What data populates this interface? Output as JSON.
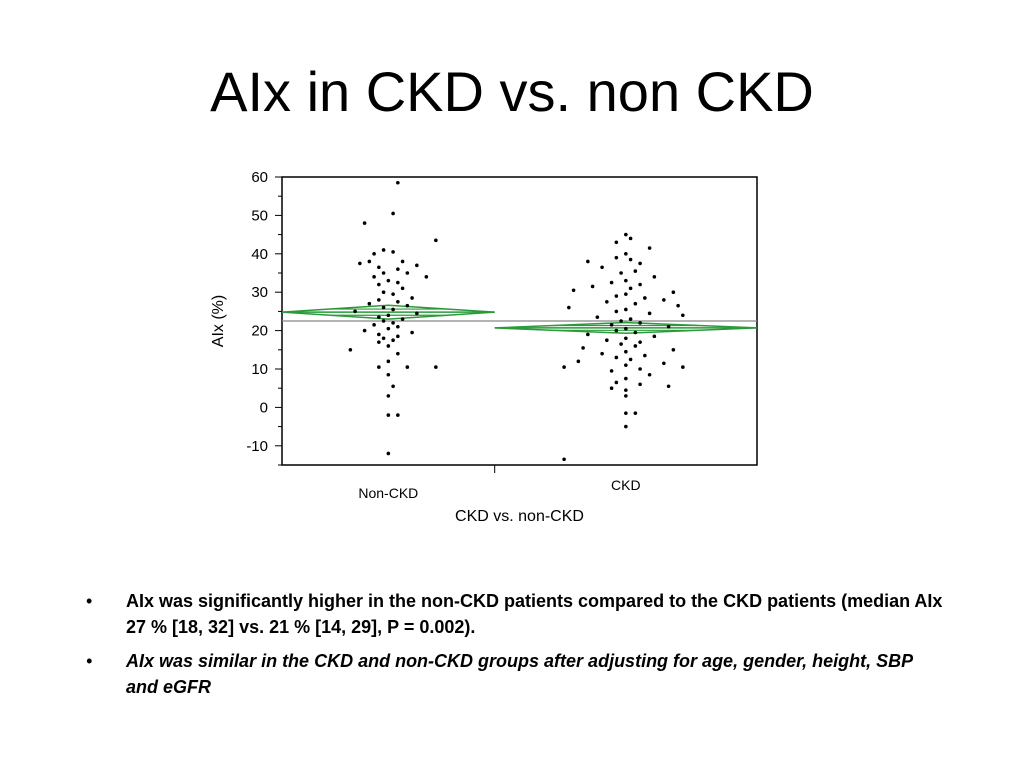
{
  "slide": {
    "title": "AIx in CKD vs. non CKD",
    "bullets": [
      "AIx was significantly higher in the non-CKD patients compared to the CKD patients (median AIx 27 % [18, 32] vs. 21 % [14, 29], P = 0.002).",
      "AIx was similar in the CKD and non-CKD groups after adjusting for age, gender, height, SBP and eGFR"
    ],
    "bullet_symbol": "•"
  },
  "chart_data": {
    "type": "scatter",
    "xlabel": "CKD vs. non-CKD",
    "ylabel": "AIx (%)",
    "categories": [
      "Non-CKD",
      "CKD"
    ],
    "ylim": [
      -15,
      60
    ],
    "yticks": [
      -10,
      0,
      10,
      20,
      30,
      40,
      50,
      60
    ],
    "grand_mean": 22.5,
    "colors": {
      "diamond": "#2a9a3a",
      "points": "#000000",
      "reference": "#888888"
    },
    "groups": [
      {
        "name": "Non-CKD",
        "mean": 24.8,
        "ci_low": 23.0,
        "ci_high": 26.6,
        "points": [
          [
            0.02,
            58.5
          ],
          [
            0.01,
            50.5
          ],
          [
            -0.05,
            48
          ],
          [
            0.1,
            43.5
          ],
          [
            -0.01,
            41
          ],
          [
            0.01,
            40.5
          ],
          [
            -0.03,
            40
          ],
          [
            -0.04,
            38
          ],
          [
            0.03,
            38
          ],
          [
            -0.06,
            37.5
          ],
          [
            0.06,
            37
          ],
          [
            -0.02,
            36.5
          ],
          [
            0.02,
            36
          ],
          [
            -0.01,
            35
          ],
          [
            0.04,
            35
          ],
          [
            -0.03,
            34
          ],
          [
            0.08,
            34
          ],
          [
            0.0,
            33
          ],
          [
            0.02,
            32.5
          ],
          [
            -0.02,
            32
          ],
          [
            0.03,
            31
          ],
          [
            -0.01,
            30
          ],
          [
            0.01,
            29.5
          ],
          [
            0.05,
            28.5
          ],
          [
            -0.02,
            28
          ],
          [
            0.02,
            27.5
          ],
          [
            -0.04,
            27
          ],
          [
            0.04,
            26.5
          ],
          [
            -0.01,
            26
          ],
          [
            0.01,
            25.5
          ],
          [
            -0.07,
            25
          ],
          [
            0.06,
            24.5
          ],
          [
            0.0,
            24
          ],
          [
            -0.02,
            23.5
          ],
          [
            0.03,
            23
          ],
          [
            -0.01,
            22.5
          ],
          [
            0.01,
            22
          ],
          [
            -0.03,
            21.5
          ],
          [
            0.02,
            21
          ],
          [
            0.0,
            20.5
          ],
          [
            -0.05,
            20
          ],
          [
            0.05,
            19.5
          ],
          [
            -0.02,
            19
          ],
          [
            0.02,
            18.5
          ],
          [
            -0.01,
            18
          ],
          [
            0.01,
            17.5
          ],
          [
            -0.02,
            17
          ],
          [
            0.0,
            16
          ],
          [
            -0.08,
            15
          ],
          [
            0.02,
            14
          ],
          [
            0.0,
            12
          ],
          [
            -0.02,
            10.5
          ],
          [
            0.04,
            10.5
          ],
          [
            0.1,
            10.5
          ],
          [
            0.0,
            8.5
          ],
          [
            0.01,
            5.5
          ],
          [
            0.0,
            3
          ],
          [
            0.02,
            -2
          ],
          [
            0.0,
            -2
          ],
          [
            0.0,
            -12
          ]
        ]
      },
      {
        "name": "CKD",
        "mean": 20.7,
        "ci_low": 19.3,
        "ci_high": 22.1,
        "points": [
          [
            0.0,
            45
          ],
          [
            0.01,
            44
          ],
          [
            -0.02,
            43
          ],
          [
            0.05,
            41.5
          ],
          [
            0.0,
            40
          ],
          [
            -0.02,
            39
          ],
          [
            0.01,
            38.5
          ],
          [
            -0.08,
            38
          ],
          [
            0.03,
            37.5
          ],
          [
            -0.05,
            36.5
          ],
          [
            0.02,
            35.5
          ],
          [
            -0.01,
            35
          ],
          [
            0.06,
            34
          ],
          [
            0.0,
            33
          ],
          [
            -0.03,
            32.5
          ],
          [
            0.03,
            32
          ],
          [
            -0.07,
            31.5
          ],
          [
            0.01,
            31
          ],
          [
            -0.11,
            30.5
          ],
          [
            0.1,
            30
          ],
          [
            0.0,
            29.5
          ],
          [
            -0.02,
            29
          ],
          [
            0.04,
            28.5
          ],
          [
            0.08,
            28
          ],
          [
            -0.04,
            27.5
          ],
          [
            0.02,
            27
          ],
          [
            0.11,
            26.5
          ],
          [
            -0.12,
            26
          ],
          [
            0.0,
            25.5
          ],
          [
            -0.02,
            25
          ],
          [
            0.05,
            24.5
          ],
          [
            0.12,
            24
          ],
          [
            -0.06,
            23.5
          ],
          [
            0.01,
            23
          ],
          [
            -0.01,
            22.5
          ],
          [
            0.03,
            22
          ],
          [
            -0.03,
            21.5
          ],
          [
            0.09,
            21
          ],
          [
            0.0,
            20.5
          ],
          [
            -0.02,
            20
          ],
          [
            0.02,
            19.5
          ],
          [
            -0.08,
            19
          ],
          [
            0.06,
            18.5
          ],
          [
            0.0,
            18
          ],
          [
            -0.04,
            17.5
          ],
          [
            0.03,
            17
          ],
          [
            -0.01,
            16.5
          ],
          [
            0.02,
            16
          ],
          [
            -0.09,
            15.5
          ],
          [
            0.1,
            15
          ],
          [
            0.0,
            14.5
          ],
          [
            -0.05,
            14
          ],
          [
            0.04,
            13.5
          ],
          [
            -0.02,
            13
          ],
          [
            0.01,
            12.5
          ],
          [
            -0.1,
            12
          ],
          [
            0.08,
            11.5
          ],
          [
            0.0,
            11
          ],
          [
            -0.13,
            10.5
          ],
          [
            0.12,
            10.5
          ],
          [
            0.03,
            10
          ],
          [
            -0.03,
            9.5
          ],
          [
            0.05,
            8.5
          ],
          [
            0.0,
            7.5
          ],
          [
            -0.02,
            6.5
          ],
          [
            0.03,
            6
          ],
          [
            0.09,
            5.5
          ],
          [
            -0.03,
            5
          ],
          [
            0.0,
            4.5
          ],
          [
            0.0,
            3
          ],
          [
            0.0,
            -1.5
          ],
          [
            0.02,
            -1.5
          ],
          [
            0.0,
            -5
          ],
          [
            -0.13,
            -13.5
          ]
        ]
      }
    ]
  }
}
